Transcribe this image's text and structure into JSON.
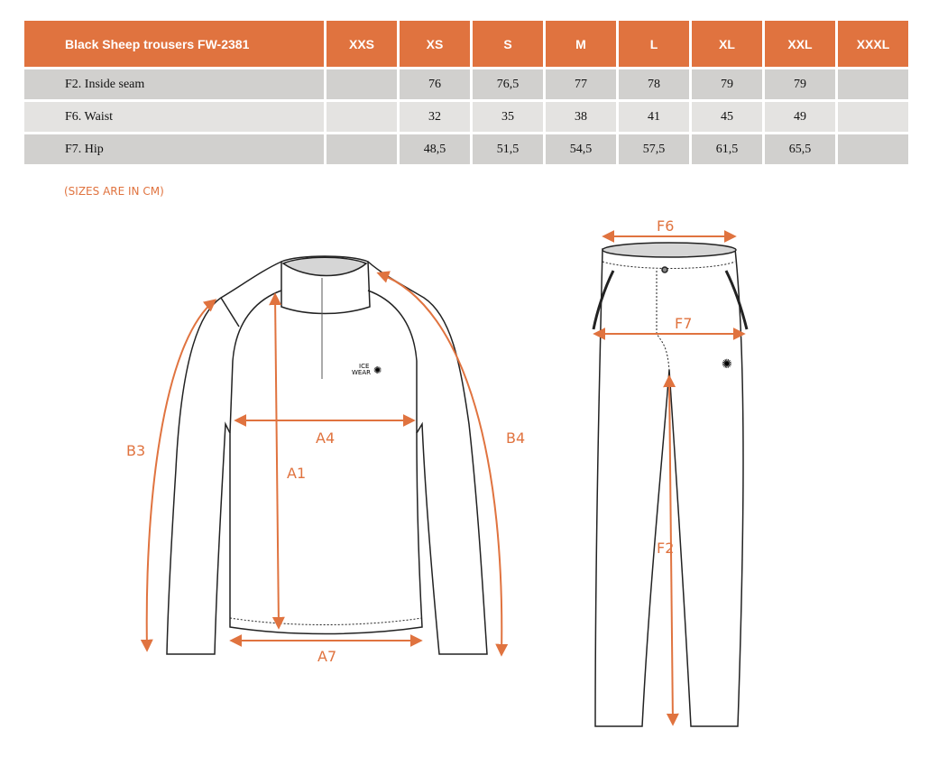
{
  "table": {
    "title": "Black Sheep trousers FW-2381",
    "sizes": [
      "XXS",
      "XS",
      "S",
      "M",
      "L",
      "XL",
      "XXL",
      "XXXL"
    ],
    "rows": [
      {
        "label": "F2. Inside seam",
        "values": [
          "",
          "76",
          "76,5",
          "77",
          "78",
          "79",
          "79",
          ""
        ]
      },
      {
        "label": "F6. Waist",
        "values": [
          "",
          "32",
          "35",
          "38",
          "41",
          "45",
          "49",
          ""
        ]
      },
      {
        "label": "F7. Hip",
        "values": [
          "",
          "48,5",
          "51,5",
          "54,5",
          "57,5",
          "61,5",
          "65,5",
          ""
        ]
      }
    ]
  },
  "note": "(SIZES ARE IN CM)",
  "diagram": {
    "accent_color": "#e0733f",
    "jacket_labels": {
      "a1": "A1",
      "a4": "A4",
      "a7": "A7",
      "b3": "B3",
      "b4": "B4"
    },
    "trouser_labels": {
      "f2": "F2",
      "f6": "F6",
      "f7": "F7"
    },
    "logo_text": [
      "ICE",
      "WEAR"
    ]
  }
}
